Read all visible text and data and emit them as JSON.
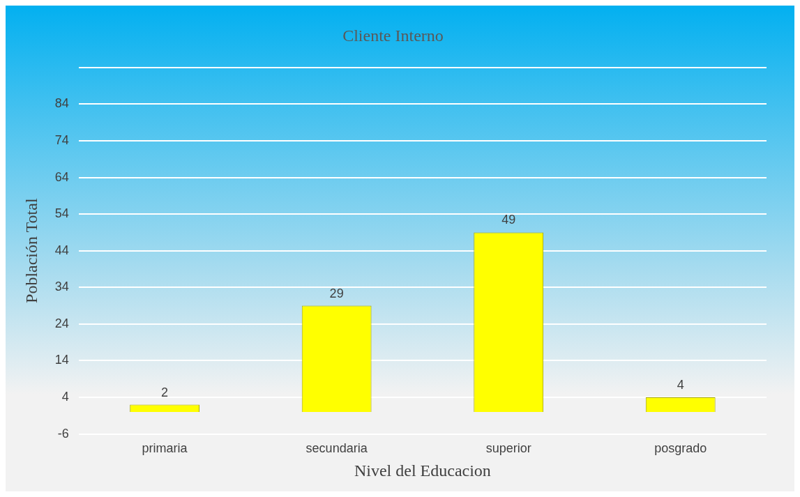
{
  "chart_data": {
    "type": "bar",
    "title": "Cliente Interno",
    "xlabel": "Nivel del Educacion",
    "ylabel": "Población Total",
    "categories": [
      "primaria",
      "secundaria",
      "superior",
      "posgrado"
    ],
    "values": [
      2,
      29,
      49,
      4
    ],
    "color": "#ffff00",
    "ylim": [
      -6,
      94
    ],
    "yticks": [
      -6,
      4,
      14,
      24,
      34,
      44,
      54,
      64,
      74,
      84,
      {
        "value": 94,
        "label": null
      }
    ],
    "grid": "y",
    "legend": false,
    "data_labels": true
  }
}
